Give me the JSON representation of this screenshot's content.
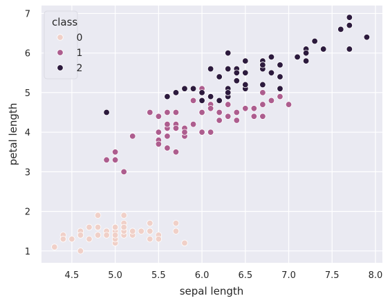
{
  "chart_data": {
    "type": "scatter",
    "xlabel": "sepal length",
    "ylabel": "petal length",
    "xlim": [
      4.15,
      8.08
    ],
    "ylim": [
      0.7,
      7.2
    ],
    "x_ticks": [
      4.5,
      5.0,
      5.5,
      6.0,
      6.5,
      7.0,
      7.5,
      8.0
    ],
    "x_tick_labels": [
      "4.5",
      "5.0",
      "5.5",
      "6.0",
      "6.5",
      "7.0",
      "7.5",
      "8.0"
    ],
    "y_ticks": [
      1,
      2,
      3,
      4,
      5,
      6,
      7
    ],
    "y_tick_labels": [
      "1",
      "2",
      "3",
      "4",
      "5",
      "6",
      "7"
    ],
    "grid": true,
    "legend": {
      "title": "class",
      "placement": "top-left",
      "entries": [
        {
          "label": "0",
          "color": "#f0d0c8"
        },
        {
          "label": "1",
          "color": "#ad5d8e"
        },
        {
          "label": "2",
          "color": "#2c1a3d"
        }
      ]
    },
    "background_color": "#eaeaf2",
    "series": [
      {
        "name": "0",
        "color": "#f0d0c8",
        "points": [
          [
            5.1,
            1.4
          ],
          [
            4.9,
            1.4
          ],
          [
            4.7,
            1.3
          ],
          [
            4.6,
            1.5
          ],
          [
            5.0,
            1.4
          ],
          [
            5.4,
            1.7
          ],
          [
            4.6,
            1.4
          ],
          [
            5.0,
            1.5
          ],
          [
            4.4,
            1.4
          ],
          [
            4.9,
            1.5
          ],
          [
            5.4,
            1.5
          ],
          [
            4.8,
            1.6
          ],
          [
            4.8,
            1.4
          ],
          [
            4.3,
            1.1
          ],
          [
            5.8,
            1.2
          ],
          [
            5.7,
            1.5
          ],
          [
            5.4,
            1.3
          ],
          [
            5.1,
            1.4
          ],
          [
            5.7,
            1.7
          ],
          [
            5.1,
            1.5
          ],
          [
            5.4,
            1.7
          ],
          [
            5.1,
            1.5
          ],
          [
            4.6,
            1.0
          ],
          [
            5.1,
            1.7
          ],
          [
            4.8,
            1.9
          ],
          [
            5.0,
            1.6
          ],
          [
            5.0,
            1.6
          ],
          [
            5.2,
            1.5
          ],
          [
            5.2,
            1.4
          ],
          [
            4.7,
            1.6
          ],
          [
            4.8,
            1.6
          ],
          [
            5.4,
            1.5
          ],
          [
            5.2,
            1.5
          ],
          [
            5.5,
            1.4
          ],
          [
            4.9,
            1.5
          ],
          [
            5.0,
            1.2
          ],
          [
            5.5,
            1.3
          ],
          [
            4.9,
            1.4
          ],
          [
            4.4,
            1.3
          ],
          [
            5.1,
            1.5
          ],
          [
            5.0,
            1.3
          ],
          [
            4.5,
            1.3
          ],
          [
            4.4,
            1.3
          ],
          [
            5.0,
            1.6
          ],
          [
            5.1,
            1.9
          ],
          [
            4.8,
            1.4
          ],
          [
            5.1,
            1.6
          ],
          [
            4.6,
            1.4
          ],
          [
            5.3,
            1.5
          ],
          [
            5.0,
            1.4
          ]
        ]
      },
      {
        "name": "1",
        "color": "#ad5d8e",
        "points": [
          [
            7.0,
            4.7
          ],
          [
            6.4,
            4.5
          ],
          [
            6.9,
            4.9
          ],
          [
            5.5,
            4.0
          ],
          [
            6.5,
            4.6
          ],
          [
            5.7,
            4.5
          ],
          [
            6.3,
            4.7
          ],
          [
            4.9,
            3.3
          ],
          [
            6.6,
            4.6
          ],
          [
            5.2,
            3.9
          ],
          [
            5.0,
            3.5
          ],
          [
            5.9,
            4.2
          ],
          [
            6.0,
            4.0
          ],
          [
            6.1,
            4.7
          ],
          [
            5.6,
            3.6
          ],
          [
            6.7,
            4.4
          ],
          [
            5.6,
            4.5
          ],
          [
            5.8,
            4.1
          ],
          [
            6.2,
            4.5
          ],
          [
            5.6,
            3.9
          ],
          [
            5.9,
            4.8
          ],
          [
            6.1,
            4.0
          ],
          [
            6.3,
            4.9
          ],
          [
            6.1,
            4.7
          ],
          [
            6.4,
            4.3
          ],
          [
            6.6,
            4.4
          ],
          [
            6.8,
            4.8
          ],
          [
            6.7,
            5.0
          ],
          [
            6.0,
            4.5
          ],
          [
            5.7,
            3.5
          ],
          [
            5.5,
            3.8
          ],
          [
            5.5,
            3.7
          ],
          [
            5.8,
            3.9
          ],
          [
            6.0,
            5.1
          ],
          [
            5.4,
            4.5
          ],
          [
            6.0,
            4.5
          ],
          [
            6.7,
            4.7
          ],
          [
            6.3,
            4.4
          ],
          [
            5.6,
            4.1
          ],
          [
            5.5,
            4.0
          ],
          [
            5.5,
            4.4
          ],
          [
            6.1,
            4.6
          ],
          [
            5.8,
            4.0
          ],
          [
            5.0,
            3.3
          ],
          [
            5.6,
            4.2
          ],
          [
            5.7,
            4.2
          ],
          [
            5.7,
            4.2
          ],
          [
            6.2,
            4.3
          ],
          [
            5.1,
            3.0
          ],
          [
            5.7,
            4.1
          ]
        ]
      },
      {
        "name": "2",
        "color": "#2c1a3d",
        "points": [
          [
            6.3,
            6.0
          ],
          [
            5.8,
            5.1
          ],
          [
            7.1,
            5.9
          ],
          [
            6.3,
            5.6
          ],
          [
            6.5,
            5.8
          ],
          [
            7.6,
            6.6
          ],
          [
            4.9,
            4.5
          ],
          [
            7.3,
            6.3
          ],
          [
            6.7,
            5.8
          ],
          [
            7.2,
            6.1
          ],
          [
            6.5,
            5.1
          ],
          [
            6.4,
            5.3
          ],
          [
            6.8,
            5.5
          ],
          [
            5.7,
            5.0
          ],
          [
            5.8,
            5.1
          ],
          [
            6.4,
            5.3
          ],
          [
            6.5,
            5.5
          ],
          [
            7.7,
            6.7
          ],
          [
            7.7,
            6.9
          ],
          [
            6.0,
            5.0
          ],
          [
            6.9,
            5.7
          ],
          [
            5.6,
            4.9
          ],
          [
            7.7,
            6.7
          ],
          [
            6.3,
            4.9
          ],
          [
            6.7,
            5.7
          ],
          [
            7.2,
            6.0
          ],
          [
            6.2,
            4.8
          ],
          [
            6.1,
            4.9
          ],
          [
            6.4,
            5.6
          ],
          [
            7.2,
            5.8
          ],
          [
            7.4,
            6.1
          ],
          [
            7.9,
            6.4
          ],
          [
            6.4,
            5.6
          ],
          [
            6.3,
            5.1
          ],
          [
            6.1,
            5.6
          ],
          [
            7.7,
            6.1
          ],
          [
            6.3,
            5.6
          ],
          [
            6.4,
            5.5
          ],
          [
            6.0,
            4.8
          ],
          [
            6.9,
            5.4
          ],
          [
            6.7,
            5.6
          ],
          [
            6.9,
            5.1
          ],
          [
            5.8,
            5.1
          ],
          [
            6.8,
            5.9
          ],
          [
            6.7,
            5.7
          ],
          [
            6.7,
            5.2
          ],
          [
            6.3,
            5.0
          ],
          [
            6.5,
            5.2
          ],
          [
            6.2,
            5.4
          ],
          [
            5.9,
            5.1
          ]
        ]
      }
    ]
  }
}
